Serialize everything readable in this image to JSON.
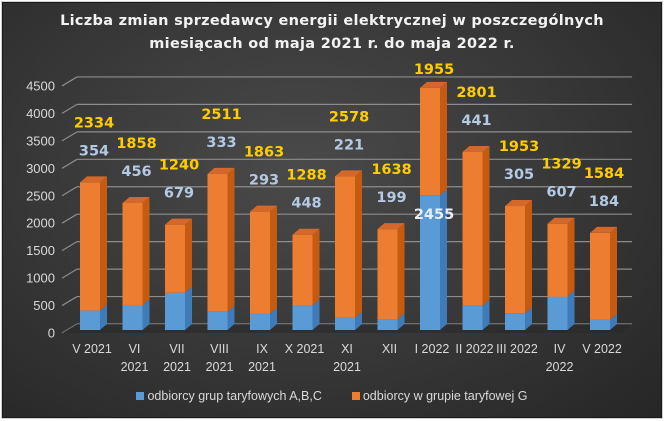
{
  "title_line1": "Liczba zmian sprzedawcy energii elektrycznej w poszczególnych",
  "title_line2": "miesiącach od maja 2021 r. do maja 2022 r.",
  "legend": {
    "abc": "odbiorcy grup taryfowych A,B,C",
    "g": "odbiorcy w grupie taryfowej G"
  },
  "colors": {
    "abc": "#5b9bd5",
    "abc_side": "#3f7bb8",
    "g": "#ed7d31",
    "g_side": "#c55a11",
    "label_g": "#ffcc00",
    "label_abc": "#b4c9e4",
    "grid": "#8c8c8c"
  },
  "chart_data": {
    "type": "bar",
    "stacked": true,
    "title": "Liczba zmian sprzedawcy energii elektrycznej w poszczególnych miesiącach od maja 2021 r. do maja 2022 r.",
    "xlabel": "",
    "ylabel": "",
    "ylim": [
      0,
      4500
    ],
    "yticks": [
      0,
      500,
      1000,
      1500,
      2000,
      2500,
      3000,
      3500,
      4000,
      4500
    ],
    "grid": true,
    "legend_position": "bottom",
    "categories": [
      [
        "V 2021"
      ],
      [
        "VI",
        "2021"
      ],
      [
        "VII",
        "2021"
      ],
      [
        "VIII",
        "2021"
      ],
      [
        "IX",
        "2021"
      ],
      [
        "X 2021"
      ],
      [
        "XI",
        "2021"
      ],
      [
        "XII"
      ],
      [
        "I 2022"
      ],
      [
        "II 2022"
      ],
      [
        "III 2022"
      ],
      [
        "IV",
        "2022"
      ],
      [
        "V 2022"
      ]
    ],
    "series": [
      {
        "name": "odbiorcy grup taryfowych A,B,C",
        "values": [
          354,
          456,
          679,
          333,
          293,
          448,
          221,
          199,
          2455,
          441,
          305,
          607,
          184
        ]
      },
      {
        "name": "odbiorcy w grupie taryfowej G",
        "values": [
          2334,
          1858,
          1240,
          2511,
          1863,
          1288,
          2578,
          1638,
          1955,
          2801,
          1953,
          1329,
          1584
        ]
      }
    ]
  }
}
